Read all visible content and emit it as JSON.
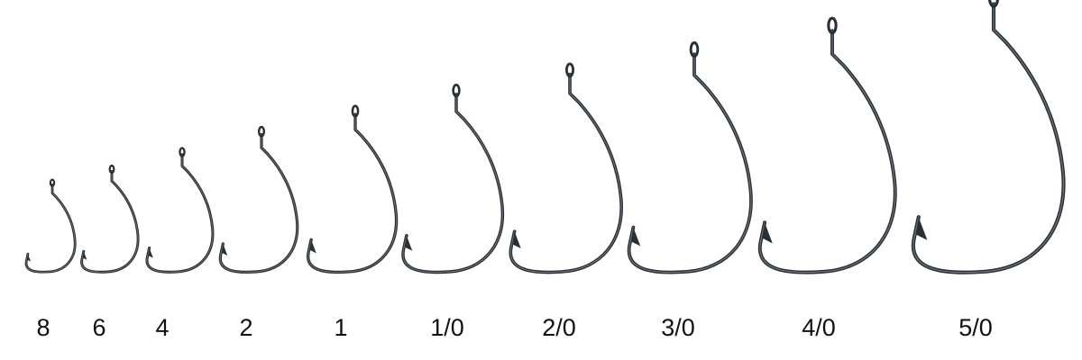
{
  "hook_chart": {
    "item_kind": "offset worm fishing hook",
    "finish_color": "#2a2f33",
    "highlight_color": "#8b9298",
    "sizes": [
      {
        "label": "8"
      },
      {
        "label": "6"
      },
      {
        "label": "4"
      },
      {
        "label": "2"
      },
      {
        "label": "1"
      },
      {
        "label": "1/0"
      },
      {
        "label": "2/0"
      },
      {
        "label": "3/0"
      },
      {
        "label": "4/0"
      },
      {
        "label": "5/0"
      }
    ]
  }
}
